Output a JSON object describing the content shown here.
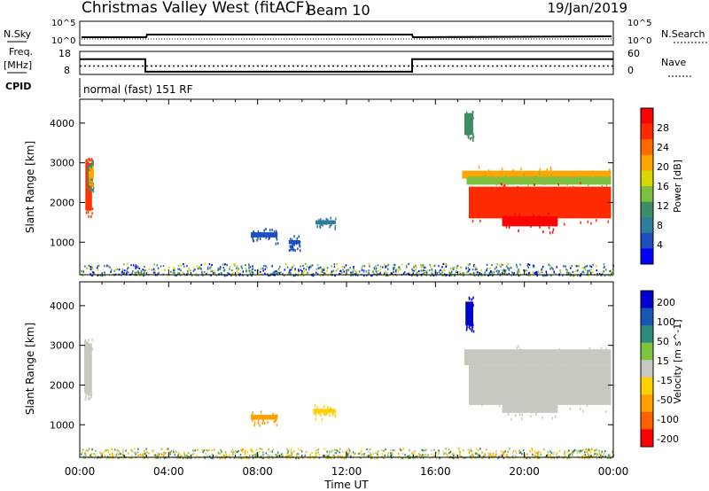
{
  "header": {
    "station": "Christmas Valley West (fitACF)",
    "beam": "Beam 10",
    "date": "19/Jan/2019"
  },
  "status_panels": {
    "noise": {
      "left_label": "N.Sky",
      "left_ticks": [
        "10^5",
        "10^0"
      ],
      "right_ticks": [
        "10^5",
        "10^0"
      ],
      "right_label": "N.Search"
    },
    "freq": {
      "left_label_1": "Freq.",
      "left_label_2": "[MHz]",
      "left_ticks": [
        "18",
        "8"
      ],
      "right_ticks": [
        "60",
        "0"
      ],
      "right_label": "Nave",
      "freq_steps": [
        {
          "t": 0.0,
          "mhz": 14.6
        },
        {
          "t": 2.95,
          "mhz": 9.2
        },
        {
          "t": 14.95,
          "mhz": 14.6
        },
        {
          "t": 24.0,
          "mhz": 14.6
        }
      ],
      "nave_level": 22
    },
    "cpid": {
      "label": "CPID",
      "text": "normal (fast) 151 RF"
    }
  },
  "colors": {
    "power": [
      "#0000ff",
      "#1f4fbf",
      "#2e7d9a",
      "#3e8c64",
      "#7fbf3f",
      "#d8d800",
      "#ffa500",
      "#ff6a00",
      "#ff2a00",
      "#ff0000"
    ],
    "velocity": [
      "#0000cc",
      "#1a55b3",
      "#2e8a7a",
      "#7fc43f",
      "#c8c8c0",
      "#ffd000",
      "#ffa000",
      "#ff6000",
      "#ff0000"
    ]
  },
  "chart_data": [
    {
      "type": "heatmap",
      "quantity": "Power",
      "ylabel": "Slant Range [km]",
      "yticks": [
        1000,
        2000,
        3000,
        4000
      ],
      "ylim": [
        180,
        4600
      ],
      "xlim": [
        0,
        24
      ],
      "colorbar": {
        "label": "Power [dB]",
        "ticks": [
          4,
          8,
          12,
          16,
          20,
          24,
          28
        ]
      },
      "regions": [
        {
          "t0": 0.25,
          "t1": 0.55,
          "r0": 1800,
          "r1": 3000,
          "color": "#ff3300"
        },
        {
          "t0": 0.35,
          "t1": 0.6,
          "r0": 2400,
          "r1": 2950,
          "color": "#3e8c64"
        },
        {
          "t0": 0.4,
          "t1": 0.6,
          "r0": 2600,
          "r1": 2800,
          "color": "#ffa500"
        },
        {
          "t0": 7.7,
          "t1": 8.9,
          "r0": 1120,
          "r1": 1250,
          "color": "#1f4fbf"
        },
        {
          "t0": 9.4,
          "t1": 9.9,
          "r0": 950,
          "r1": 1050,
          "color": "#1f4fbf"
        },
        {
          "t0": 10.6,
          "t1": 11.5,
          "r0": 1450,
          "r1": 1550,
          "color": "#2e7d9a"
        },
        {
          "t0": 17.3,
          "t1": 17.7,
          "r0": 3700,
          "r1": 4250,
          "color": "#3e8c64"
        },
        {
          "t0": 17.2,
          "t1": 23.9,
          "r0": 2600,
          "r1": 2800,
          "color": "#ffa500"
        },
        {
          "t0": 17.4,
          "t1": 23.9,
          "r0": 2450,
          "r1": 2650,
          "color": "#7fbf3f"
        },
        {
          "t0": 17.5,
          "t1": 23.9,
          "r0": 1600,
          "r1": 2400,
          "color": "#ff2a00"
        },
        {
          "t0": 19.0,
          "t1": 21.5,
          "r0": 1400,
          "r1": 1650,
          "color": "#ff0000"
        }
      ],
      "ground_band": {
        "t0": 0.0,
        "t1": 24.0,
        "r0": 180,
        "r1": 480,
        "color": "#1f4fbf"
      }
    },
    {
      "type": "heatmap",
      "quantity": "Velocity",
      "ylabel": "Slant Range [km]",
      "xlabel": "Time UT",
      "yticks": [
        1000,
        2000,
        3000,
        4000
      ],
      "ylim": [
        180,
        4600
      ],
      "xlim": [
        0,
        24
      ],
      "xticks": [
        "00:00",
        "04:00",
        "08:00",
        "12:00",
        "16:00",
        "20:00",
        "00:00"
      ],
      "colorbar": {
        "label": "Velocity [m s^-1]",
        "ticks": [
          200,
          100,
          50,
          15,
          -15,
          -50,
          -100,
          -200
        ]
      },
      "regions": [
        {
          "t0": 0.2,
          "t1": 0.55,
          "r0": 1800,
          "r1": 3050,
          "color": "#c8c8c0"
        },
        {
          "t0": 7.7,
          "t1": 8.9,
          "r0": 1130,
          "r1": 1250,
          "color": "#ffa000"
        },
        {
          "t0": 10.5,
          "t1": 11.5,
          "r0": 1300,
          "r1": 1400,
          "color": "#ffd000"
        },
        {
          "t0": 17.35,
          "t1": 17.7,
          "r0": 3500,
          "r1": 4100,
          "color": "#0000cc"
        },
        {
          "t0": 17.3,
          "t1": 23.9,
          "r0": 2500,
          "r1": 2900,
          "color": "#c8c8c0"
        },
        {
          "t0": 17.5,
          "t1": 23.9,
          "r0": 1500,
          "r1": 2500,
          "color": "#c8c8c0"
        },
        {
          "t0": 19.0,
          "t1": 21.5,
          "r0": 1300,
          "r1": 1600,
          "color": "#c8c8c0"
        }
      ],
      "ground_band": {
        "t0": 0.0,
        "t1": 24.0,
        "r0": 180,
        "r1": 420,
        "color": "#c8c8c0"
      }
    }
  ]
}
